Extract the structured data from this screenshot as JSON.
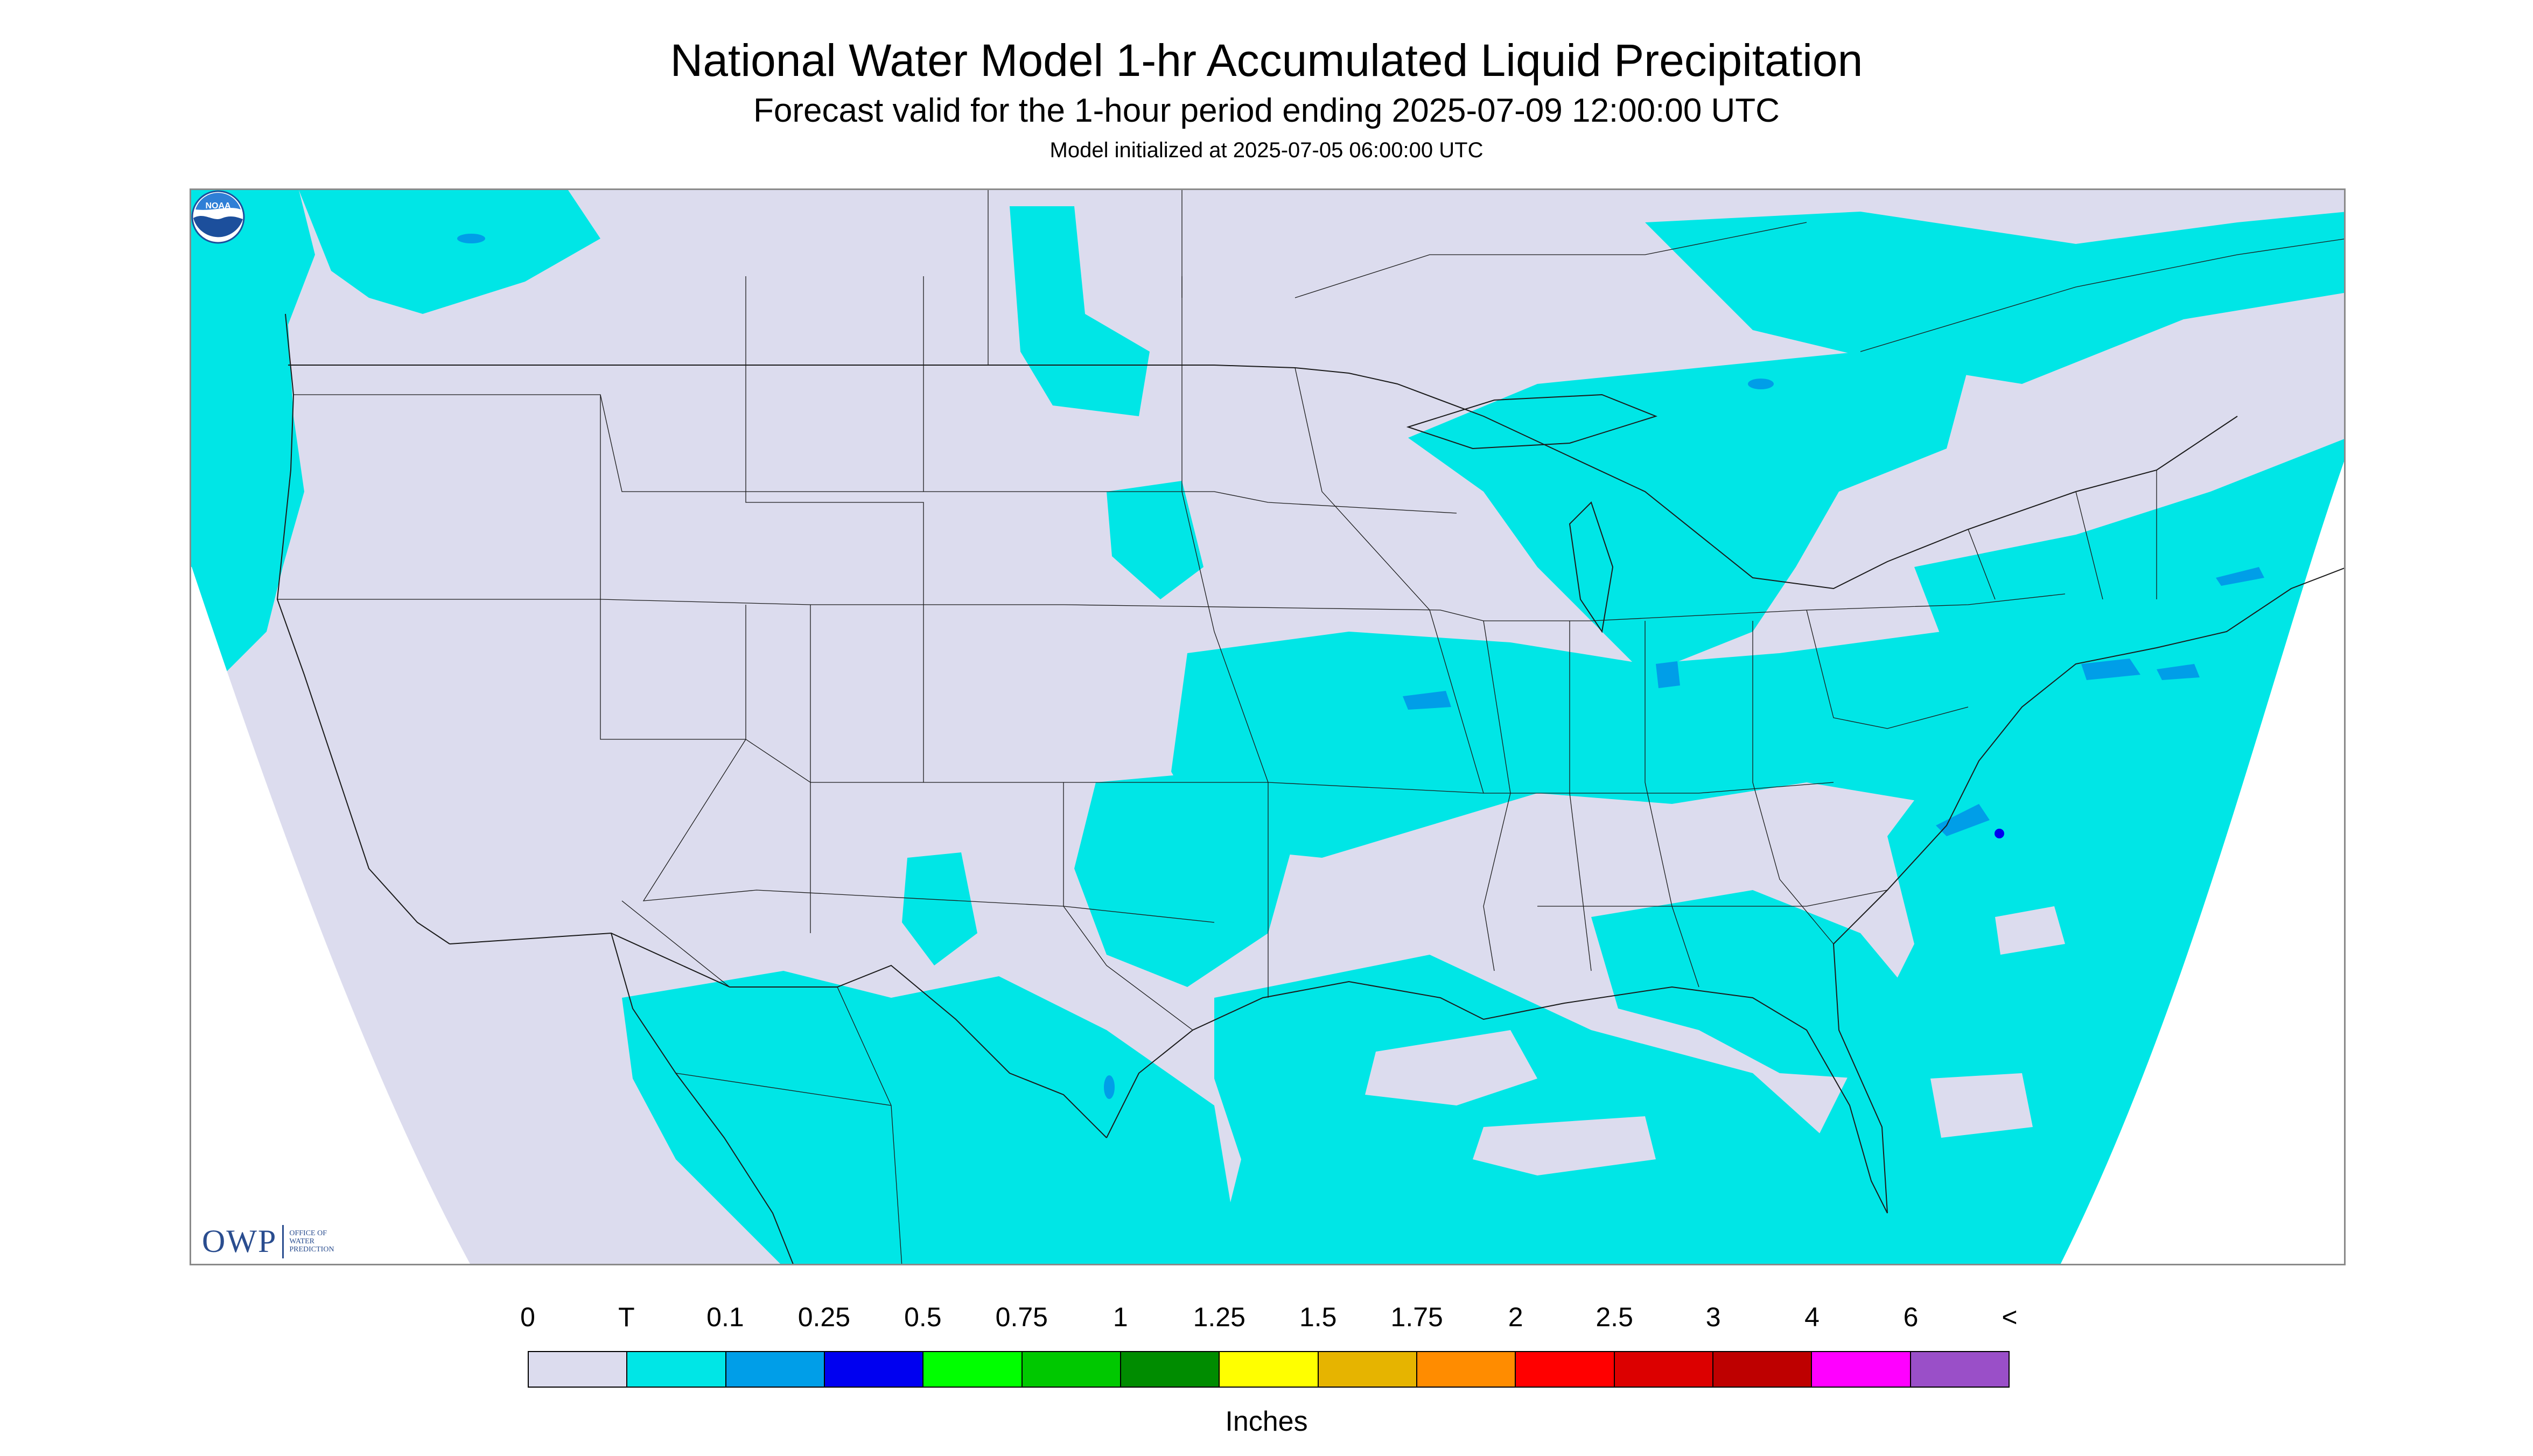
{
  "header": {
    "title": "National Water Model 1-hr Accumulated Liquid Precipitation",
    "subtitle": "Forecast valid for the 1-hour period ending 2025-07-09 12:00:00 UTC",
    "init": "Model initialized at 2025-07-05 06:00:00 UTC"
  },
  "map": {
    "region": "Continental United States with southern Canada, northern Mexico, Gulf of Mexico and western Atlantic",
    "background_color": "#dcdcee",
    "precip_color": "#00e6e6",
    "moderate_color": "#009ee8"
  },
  "branding": {
    "owp_mark": "OWP",
    "owp_text_lines": [
      "OFFICE OF",
      "WATER",
      "PREDICTION"
    ],
    "noaa_logo": "NOAA",
    "noaa_icon": "noaa-logo-icon"
  },
  "legend": {
    "labels": [
      "0",
      "T",
      "0.1",
      "0.25",
      "0.5",
      "0.75",
      "1",
      "1.25",
      "1.5",
      "1.75",
      "2",
      "2.5",
      "3",
      "4",
      "6",
      "<"
    ],
    "colors": [
      "#dcdcee",
      "#00e6e6",
      "#009ee8",
      "#0000f0",
      "#00ff00",
      "#00c800",
      "#008c00",
      "#ffff00",
      "#e6b400",
      "#ff8c00",
      "#ff0000",
      "#dc0000",
      "#be0000",
      "#ff00ff",
      "#9a4fc8"
    ],
    "units": "Inches"
  }
}
